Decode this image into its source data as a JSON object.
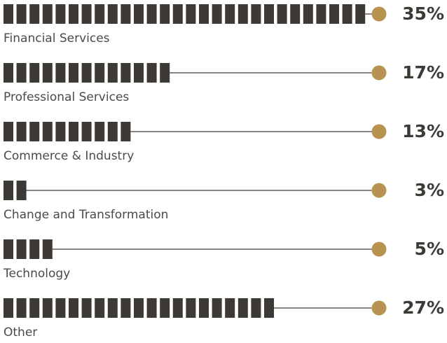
{
  "chart_data": {
    "type": "segmented-bar",
    "categories": [
      "Financial Services",
      "Professional Services",
      "Commerce & Industry",
      "Change and Transformation",
      "Technology",
      "Other"
    ],
    "values": [
      35,
      17,
      13,
      3,
      5,
      27
    ],
    "value_labels": [
      "35%",
      "17%",
      "13%",
      "3%",
      "5%",
      "27%"
    ],
    "color": "#3d3935",
    "marker_color": "#b8924f"
  }
}
